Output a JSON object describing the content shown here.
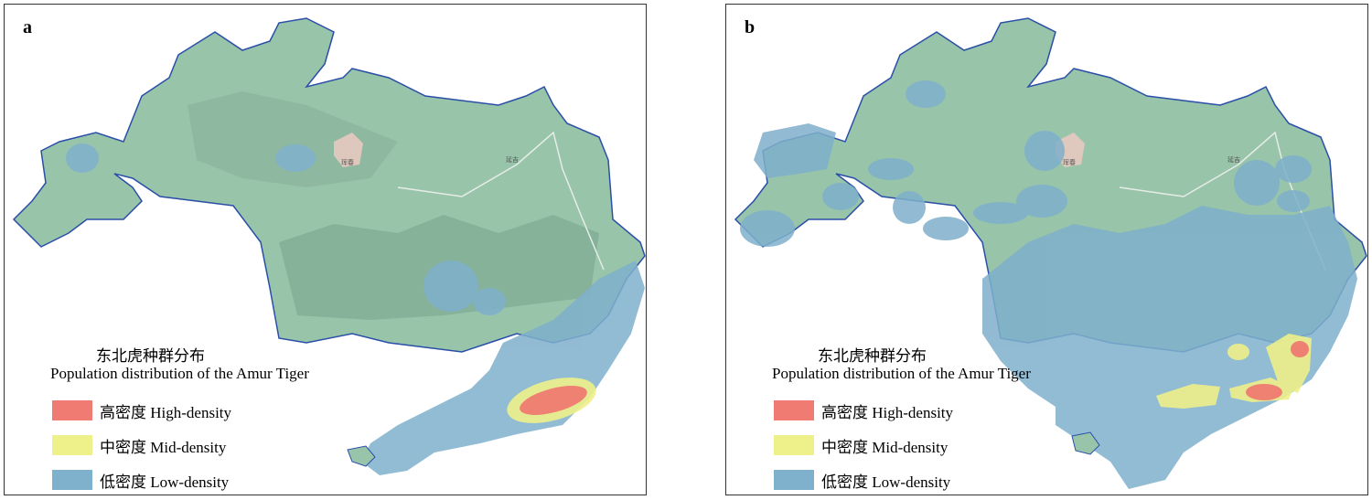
{
  "panels": [
    {
      "label": "a",
      "legend": {
        "title_cn": "东北虎种群分布",
        "title_en": "Population distribution of the Amur Tiger",
        "items": [
          {
            "text": "高密度 High-density",
            "color": "#ef7b72"
          },
          {
            "text": "中密度 Mid-density",
            "color": "#eef08a"
          },
          {
            "text": "低密度 Low-density",
            "color": "#7fb0cc"
          }
        ]
      },
      "place_labels": [
        "珲春",
        "延吉"
      ]
    },
    {
      "label": "b",
      "legend": {
        "title_cn": "东北虎种群分布",
        "title_en": "Population distribution of the Amur Tiger",
        "items": [
          {
            "text": "高密度 High-density",
            "color": "#ef7b72"
          },
          {
            "text": "中密度 Mid-density",
            "color": "#eef08a"
          },
          {
            "text": "低密度 Low-density",
            "color": "#7fb0cc"
          }
        ]
      },
      "place_labels": [
        "珲春",
        "延吉"
      ]
    }
  ],
  "colors": {
    "terrain": "#98c4aa",
    "terrain_dark": "#6f9d84",
    "boundary": "#2a4fa8",
    "urban": "#e7c9c0"
  }
}
